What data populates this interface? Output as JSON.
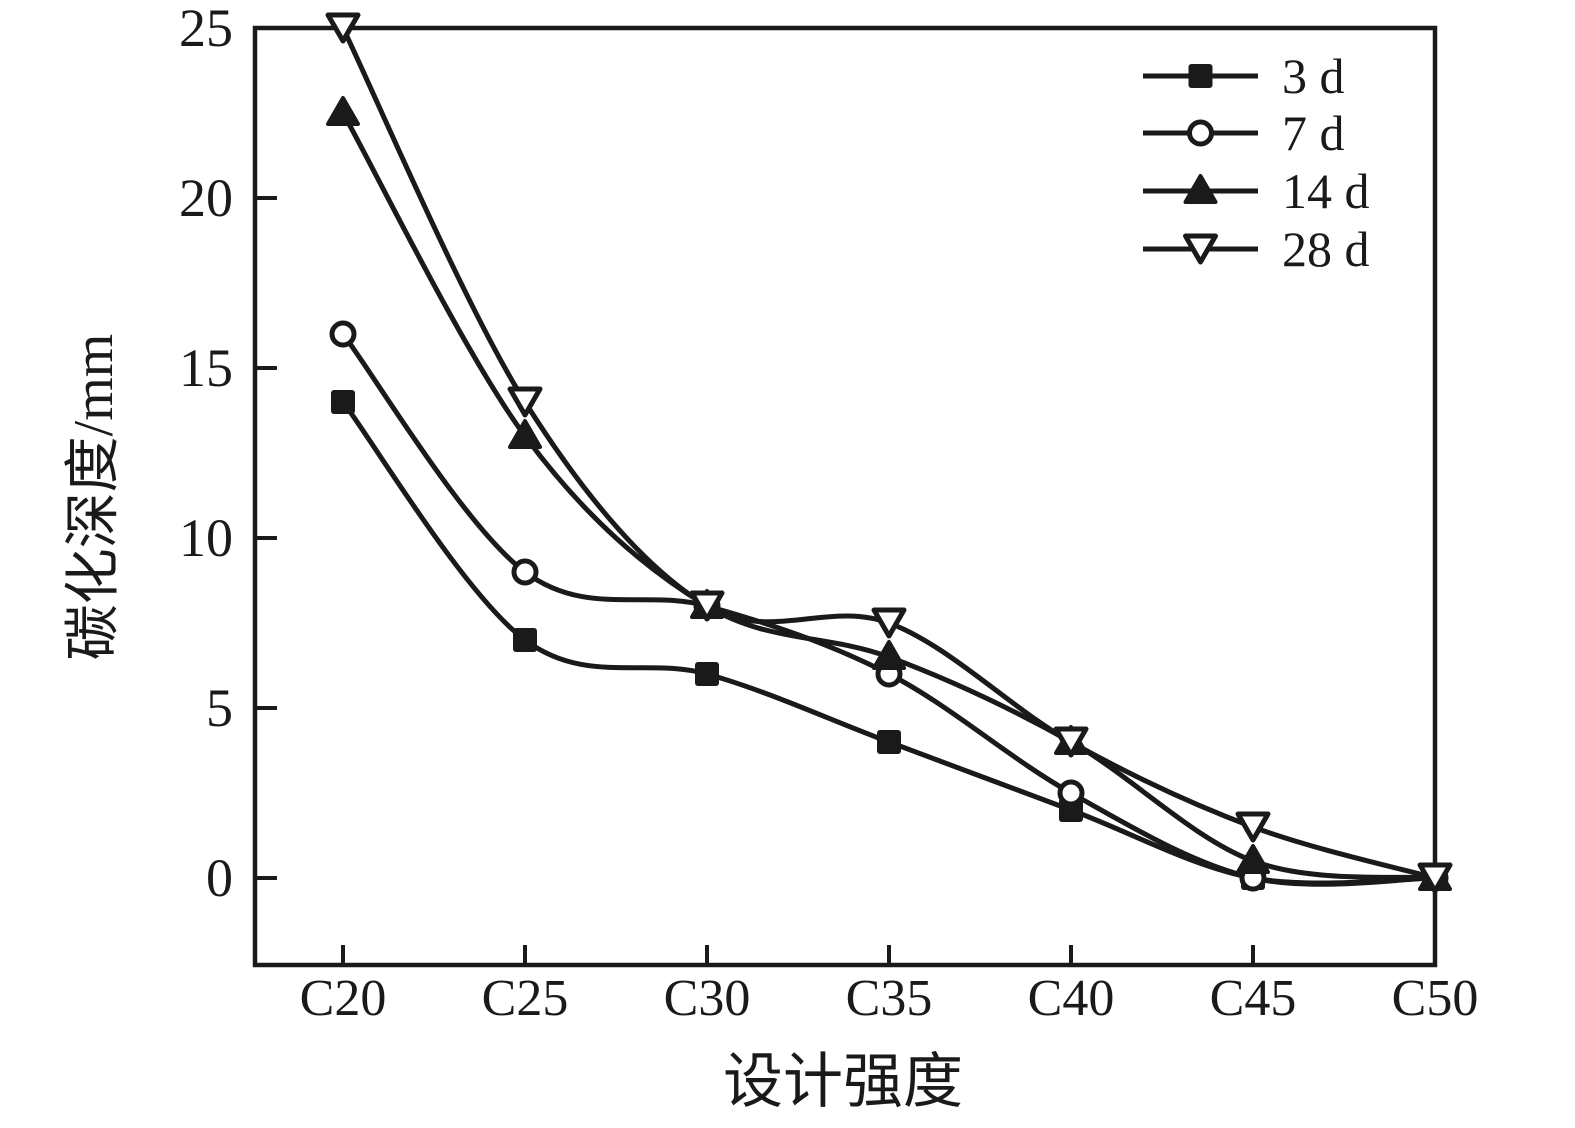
{
  "chart_data": {
    "type": "line",
    "title": "",
    "xlabel": "设计强度",
    "ylabel": "碳化深度/mm",
    "categories": [
      "C20",
      "C25",
      "C30",
      "C35",
      "C40",
      "C45",
      "C50"
    ],
    "series": [
      {
        "name": "3 d",
        "marker": "filled-square",
        "values": [
          14,
          7,
          6,
          4,
          2,
          0,
          0
        ]
      },
      {
        "name": "7 d",
        "marker": "open-circle",
        "values": [
          16,
          9,
          8,
          6,
          2.5,
          0,
          0
        ]
      },
      {
        "name": "14 d",
        "marker": "filled-triangle-up",
        "values": [
          22.5,
          13,
          8,
          6.5,
          4,
          0.5,
          0
        ]
      },
      {
        "name": "28 d",
        "marker": "open-triangle-down",
        "values": [
          25,
          14,
          8,
          7.5,
          4,
          1.5,
          0
        ]
      }
    ],
    "yticks": [
      0,
      5,
      10,
      15,
      20,
      25
    ],
    "ytick_labels": [
      "0",
      "5",
      "10",
      "15",
      "20",
      "25"
    ],
    "ylim": [
      -2.6,
      25
    ],
    "grid": false,
    "legend_position": "top-right",
    "colors": {
      "ink": "#1a1a1a",
      "background": "#ffffff"
    }
  }
}
